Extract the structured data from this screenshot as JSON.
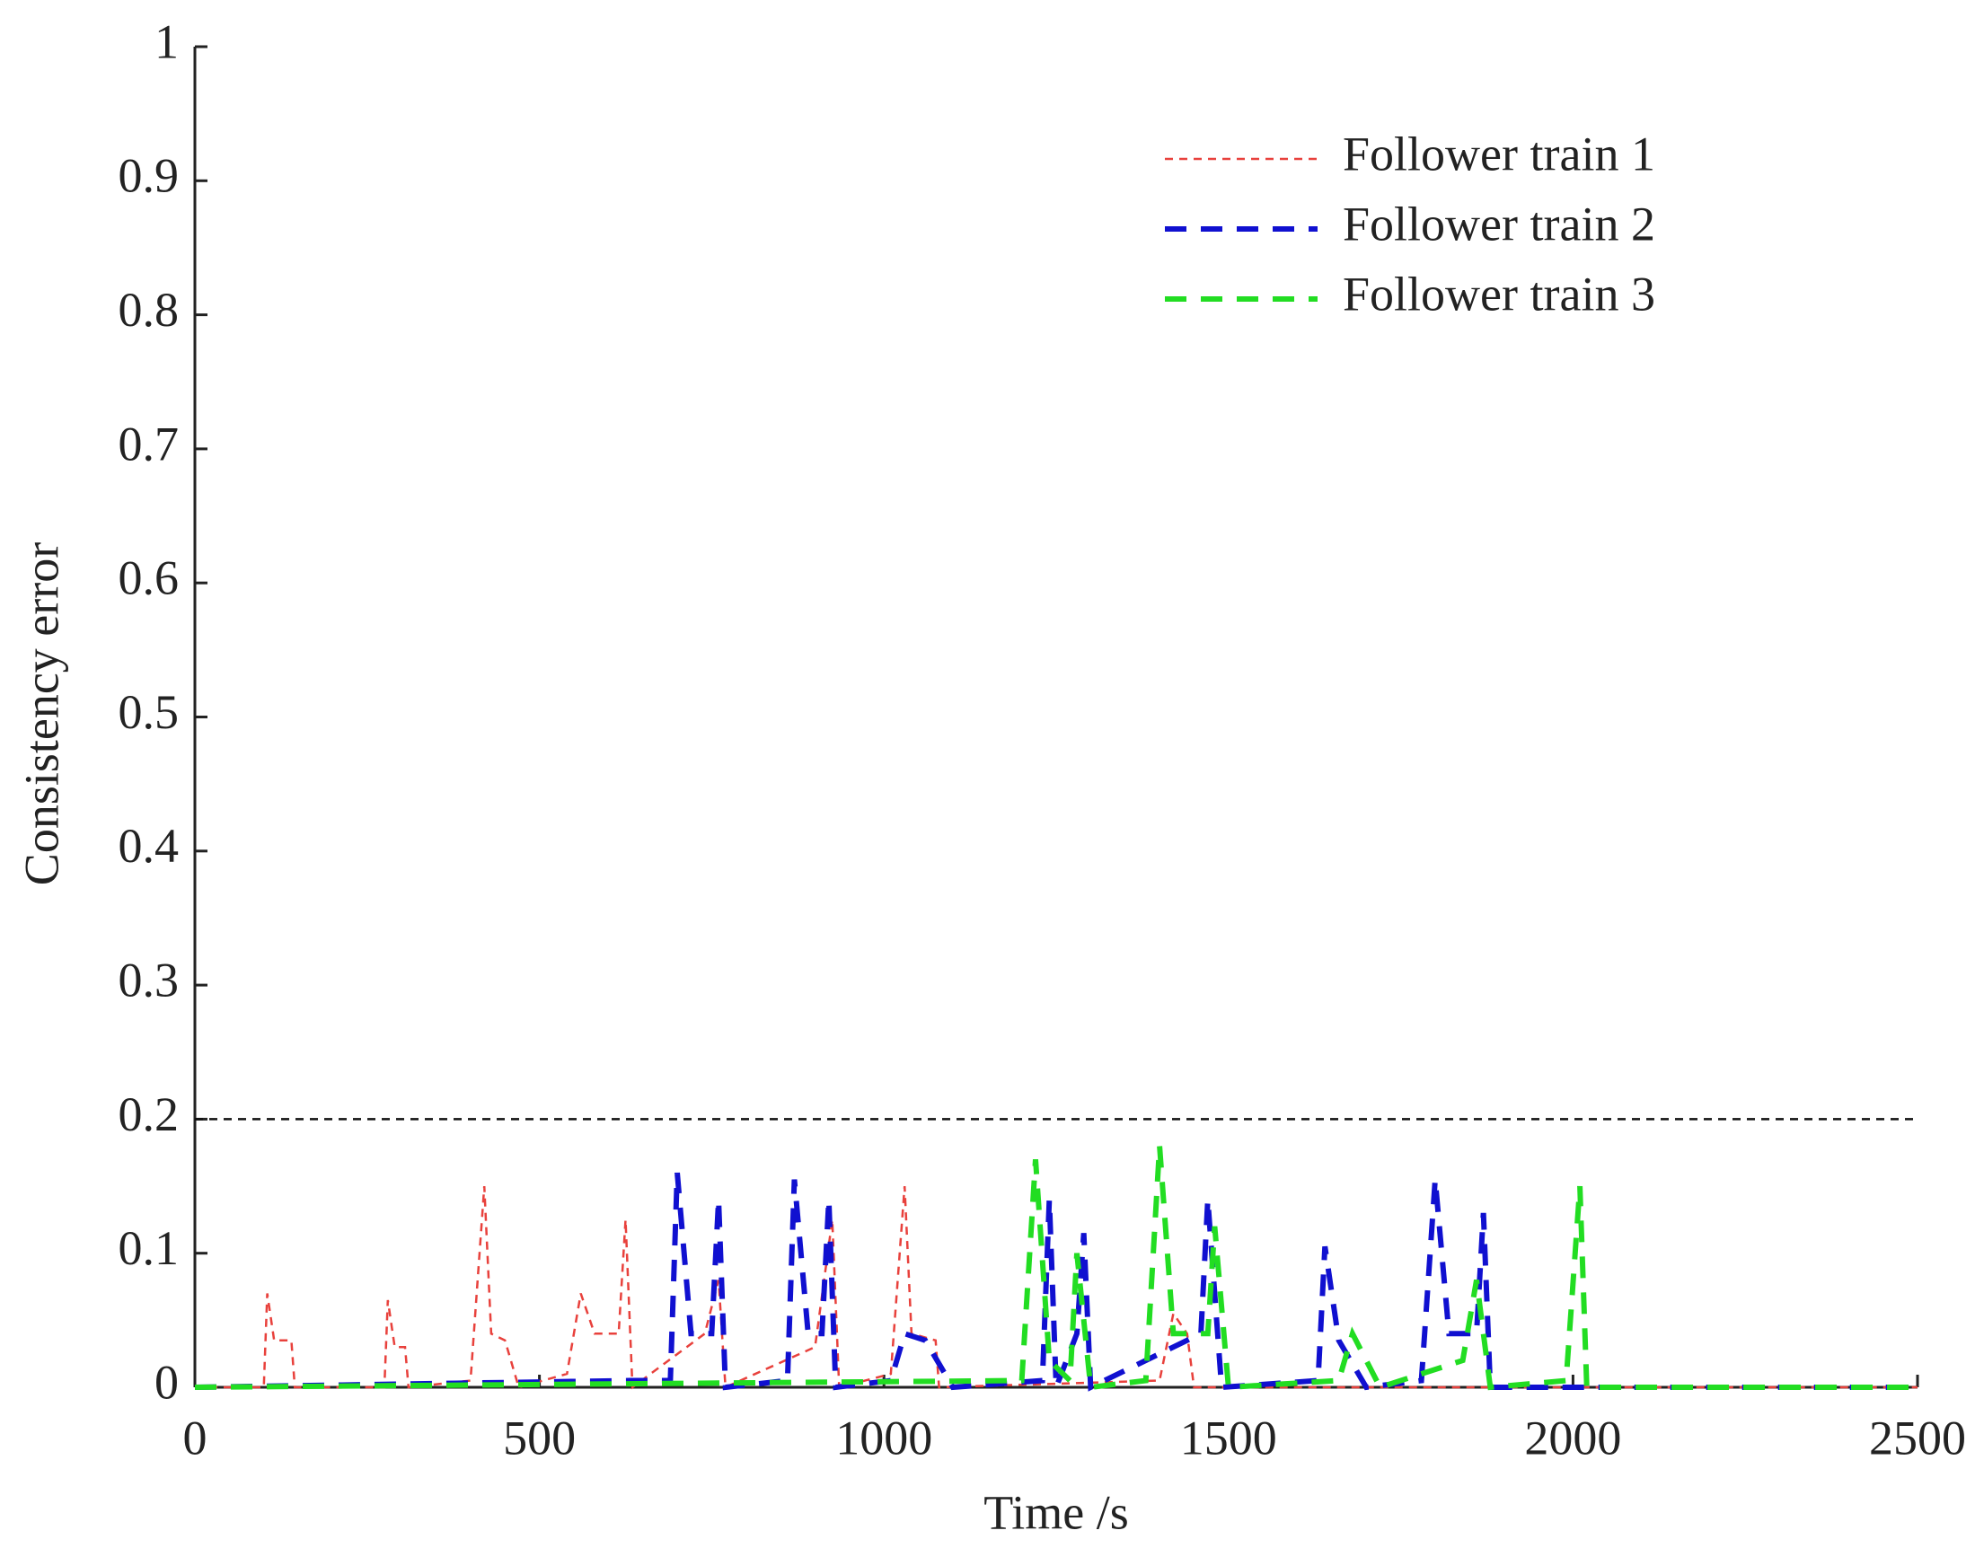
{
  "chart_data": {
    "type": "line",
    "xlabel": "Time /s",
    "ylabel": "Consistency error",
    "xlim": [
      0,
      2500
    ],
    "ylim": [
      0,
      1
    ],
    "xticks": [
      0,
      500,
      1000,
      1500,
      2000,
      2500
    ],
    "yticks": [
      0,
      0.1,
      0.2,
      0.3,
      0.4,
      0.5,
      0.6,
      0.7,
      0.8,
      0.9,
      1
    ],
    "hline": 0.2,
    "legend": "upper right",
    "series": [
      {
        "name": "Follower train 1",
        "color": "#e8413c",
        "x": [
          0,
          100,
          105,
          115,
          140,
          145,
          275,
          280,
          290,
          305,
          310,
          400,
          420,
          430,
          450,
          470,
          540,
          560,
          580,
          615,
          625,
          635,
          740,
          760,
          770,
          900,
          925,
          935,
          1010,
          1030,
          1040,
          1075,
          1080,
          1400,
          1420,
          1440,
          1450,
          2500
        ],
        "values": [
          0,
          0,
          0.07,
          0.035,
          0.035,
          0,
          0,
          0.065,
          0.03,
          0.03,
          0,
          0.005,
          0.15,
          0.04,
          0.035,
          0,
          0.01,
          0.07,
          0.04,
          0.04,
          0.125,
          0,
          0.04,
          0.08,
          0,
          0.03,
          0.125,
          0,
          0.01,
          0.15,
          0.04,
          0.035,
          0,
          0.005,
          0.055,
          0.04,
          0,
          0
        ]
      },
      {
        "name": "Follower train 2",
        "color": "#1010d0",
        "x": [
          0,
          630,
          690,
          700,
          720,
          750,
          760,
          770,
          860,
          870,
          890,
          910,
          920,
          930,
          1010,
          1030,
          1060,
          1100,
          1230,
          1240,
          1250,
          1280,
          1290,
          1300,
          1460,
          1470,
          1490,
          1630,
          1640,
          1660,
          1700,
          1780,
          1800,
          1820,
          1860,
          1870,
          1880,
          2500
        ],
        "values": [
          0,
          0.005,
          0.005,
          0.16,
          0.04,
          0.04,
          0.14,
          0,
          0.005,
          0.155,
          0.04,
          0.04,
          0.14,
          0,
          0.005,
          0.04,
          0.035,
          0,
          0.005,
          0.14,
          0,
          0.04,
          0.115,
          0,
          0.04,
          0.14,
          0,
          0.005,
          0.105,
          0.035,
          0,
          0.005,
          0.155,
          0.04,
          0.04,
          0.13,
          0,
          0
        ]
      },
      {
        "name": "Follower train 3",
        "color": "#22dd22",
        "x": [
          0,
          1200,
          1220,
          1240,
          1270,
          1280,
          1300,
          1380,
          1400,
          1420,
          1470,
          1480,
          1500,
          1660,
          1680,
          1720,
          1840,
          1860,
          1880,
          1990,
          2010,
          2020,
          2080,
          2500
        ],
        "values": [
          0,
          0.005,
          0.17,
          0.02,
          0.005,
          0.1,
          0,
          0.005,
          0.18,
          0.04,
          0.04,
          0.12,
          0,
          0.005,
          0.04,
          0,
          0.02,
          0.08,
          0,
          0.005,
          0.15,
          0,
          0,
          0
        ]
      }
    ]
  }
}
